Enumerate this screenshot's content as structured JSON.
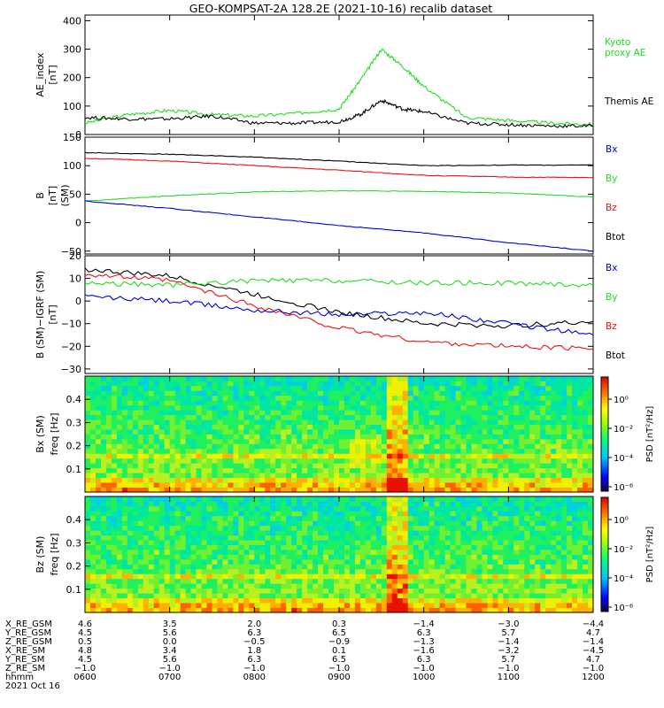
{
  "title": "GEO-KOMPSAT-2A 128.2E (2021-10-16) recalib dataset",
  "colors": {
    "black": "#000000",
    "green": "#22dd22",
    "red": "#ee1111",
    "blue": "#0000dd"
  },
  "chart_data": [
    {
      "type": "line",
      "ylabel": [
        "AE_index",
        "[nT]"
      ],
      "ylim": [
        0,
        420
      ],
      "yticks": [
        0,
        100,
        200,
        300,
        400
      ],
      "x": [
        "0600",
        "0630",
        "0700",
        "0730",
        "0800",
        "0830",
        "0900",
        "0915",
        "0930",
        "0945",
        "1000",
        "1030",
        "1100",
        "1130",
        "1200"
      ],
      "series": [
        {
          "name": "Kyoto proxy AE",
          "color": "green",
          "legend": [
            "Kyoto",
            "proxy AE"
          ],
          "values": [
            40,
            70,
            85,
            70,
            65,
            75,
            90,
            190,
            300,
            240,
            170,
            60,
            50,
            40,
            35
          ]
        },
        {
          "name": "Themis AE",
          "color": "black",
          "legend": [
            "Themis AE"
          ],
          "values": [
            60,
            55,
            55,
            65,
            40,
            40,
            45,
            70,
            120,
            90,
            80,
            40,
            35,
            30,
            30
          ]
        }
      ]
    },
    {
      "type": "line",
      "ylabel": [
        "B",
        "[nT]",
        "(SM)"
      ],
      "ylim": [
        -55,
        150
      ],
      "yticks": [
        -50,
        0,
        50,
        100,
        150
      ],
      "x": [
        "0600",
        "0700",
        "0800",
        "0900",
        "1000",
        "1100",
        "1200"
      ],
      "series": [
        {
          "name": "Btot",
          "color": "black",
          "values": [
            123,
            120,
            115,
            108,
            100,
            101,
            101
          ]
        },
        {
          "name": "Bz",
          "color": "red",
          "values": [
            113,
            108,
            100,
            92,
            83,
            80,
            79
          ]
        },
        {
          "name": "By",
          "color": "green",
          "values": [
            38,
            47,
            54,
            56,
            55,
            52,
            45
          ]
        },
        {
          "name": "Bx",
          "color": "blue",
          "values": [
            38,
            25,
            10,
            -5,
            -18,
            -35,
            -50
          ]
        }
      ],
      "legend": [
        "Bx",
        "By",
        "Bz",
        "Btot"
      ],
      "legend_colors": [
        "blue",
        "green",
        "red",
        "black"
      ]
    },
    {
      "type": "line",
      "ylabel": [
        "B (SM)−IGRF (SM)",
        "[nT]"
      ],
      "ylim": [
        -32,
        20
      ],
      "yticks": [
        -30,
        -20,
        -10,
        0,
        10,
        20
      ],
      "x": [
        "0600",
        "0700",
        "0800",
        "0900",
        "1000",
        "1100",
        "1200"
      ],
      "series": [
        {
          "name": "Btot",
          "color": "black",
          "values": [
            14,
            11,
            3,
            -5,
            -10,
            -11,
            -9
          ]
        },
        {
          "name": "By",
          "color": "green",
          "values": [
            8,
            7,
            9,
            9,
            8,
            8,
            7
          ]
        },
        {
          "name": "Bz",
          "color": "red",
          "values": [
            12,
            9,
            -2,
            -12,
            -18,
            -20,
            -21
          ]
        },
        {
          "name": "Bx",
          "color": "blue",
          "values": [
            2,
            0,
            -4,
            -6,
            -5,
            -10,
            -15
          ]
        }
      ],
      "legend": [
        "Bx",
        "By",
        "Bz",
        "Btot"
      ],
      "legend_colors": [
        "blue",
        "green",
        "red",
        "black"
      ]
    },
    {
      "type": "heatmap",
      "ylabel": [
        "Bx (SM)",
        "freq [Hz]"
      ],
      "ylim": [
        0,
        0.5
      ],
      "yticks": [
        "0.1",
        "0.2",
        "0.3",
        "0.4"
      ],
      "ytick_values": [
        0.1,
        0.2,
        0.3,
        0.4
      ],
      "colorbar": {
        "label": "PSD [nT²/Hz]",
        "ticks": [
          "10⁰",
          "10⁻²",
          "10⁻⁴",
          "10⁻⁶"
        ]
      }
    },
    {
      "type": "heatmap",
      "ylabel": [
        "Bz (SM)",
        "freq [Hz]"
      ],
      "ylim": [
        0,
        0.5
      ],
      "yticks": [
        "0.1",
        "0.2",
        "0.3",
        "0.4"
      ],
      "ytick_values": [
        0.1,
        0.2,
        0.3,
        0.4
      ],
      "colorbar": {
        "label": "PSD [nT²/Hz]",
        "ticks": [
          "10⁰",
          "10⁻²",
          "10⁻⁴",
          "10⁻⁶"
        ]
      }
    }
  ],
  "xaxis_table": {
    "rows": [
      {
        "label": "X_RE_GSM",
        "values": [
          "4.6",
          "3.5",
          "2.0",
          "0.3",
          "−1.4",
          "−3.0",
          "−4.4"
        ]
      },
      {
        "label": "Y_RE_GSM",
        "values": [
          "4.5",
          "5.6",
          "6.3",
          "6.5",
          "6.3",
          "5.7",
          "4.7"
        ]
      },
      {
        "label": "Z_RE_GSM",
        "values": [
          "0.5",
          "0.0",
          "−0.5",
          "−0.9",
          "−1.3",
          "−1.4",
          "−1.4"
        ]
      },
      {
        "label": "X_RE_SM",
        "values": [
          "4.8",
          "3.4",
          "1.8",
          "0.1",
          "−1.6",
          "−3.2",
          "−4.5"
        ]
      },
      {
        "label": "Y_RE_SM",
        "values": [
          "4.5",
          "5.6",
          "6.3",
          "6.5",
          "6.3",
          "5.7",
          "4.7"
        ]
      },
      {
        "label": "Z_RE_SM",
        "values": [
          "−1.0",
          "−1.0",
          "−1.0",
          "−1.0",
          "−1.0",
          "−1.0",
          "−1.0"
        ]
      },
      {
        "label": "hhmm",
        "values": [
          "0600",
          "0700",
          "0800",
          "0900",
          "1000",
          "1100",
          "1200"
        ]
      }
    ],
    "date": "2021 Oct 16"
  }
}
